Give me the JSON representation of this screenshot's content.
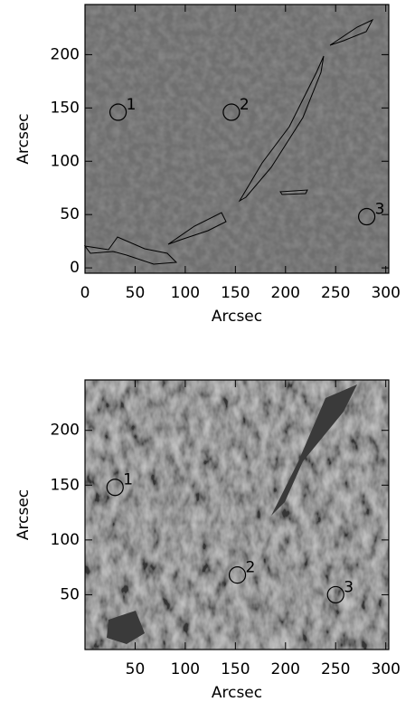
{
  "chart_data": [
    {
      "type": "image",
      "xlabel": "Arcsec",
      "ylabel": "Arcsec",
      "xlim": [
        0,
        303
      ],
      "ylim": [
        -5,
        247
      ],
      "xticks": [
        0,
        50,
        100,
        150,
        200,
        250,
        300
      ],
      "yticks": [
        0,
        50,
        100,
        150,
        200
      ],
      "annotations": [
        {
          "x": 33,
          "y": 146,
          "label": "1"
        },
        {
          "x": 146,
          "y": 146,
          "label": "2"
        },
        {
          "x": 281,
          "y": 48,
          "label": "3"
        }
      ]
    },
    {
      "type": "image",
      "xlabel": "Arcsec",
      "ylabel": "Arcsec",
      "xlim": [
        0,
        303
      ],
      "ylim": [
        0,
        246
      ],
      "xticks": [
        50,
        100,
        150,
        200,
        250,
        300
      ],
      "yticks": [
        50,
        100,
        150,
        200
      ],
      "annotations": [
        {
          "x": 30,
          "y": 148,
          "label": "1"
        },
        {
          "x": 152,
          "y": 68,
          "label": "2"
        },
        {
          "x": 250,
          "y": 50,
          "label": "3"
        }
      ]
    }
  ]
}
